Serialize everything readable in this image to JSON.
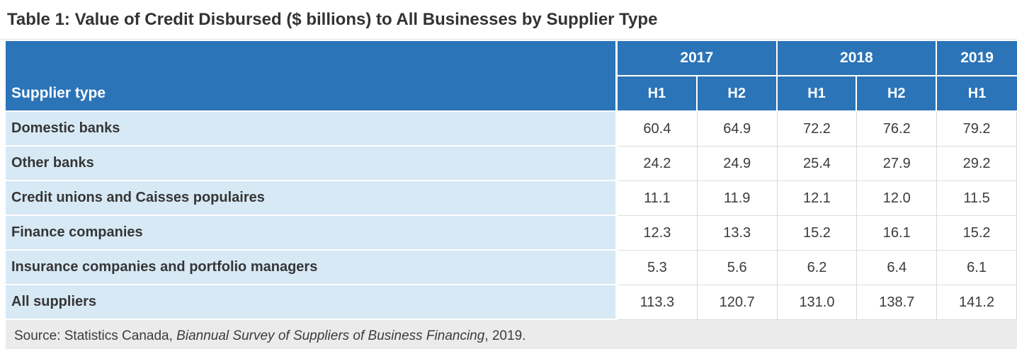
{
  "title": "Table 1: Value of Credit Disbursed ($ billions) to All Businesses by Supplier Type",
  "colors": {
    "header_bg": "#2b74b8",
    "header_text": "#ffffff",
    "row_label_bg": "#d7e9f5",
    "source_bg": "#ebebeb",
    "grid_border": "#d9d9d9",
    "title_text": "#333333",
    "label_text": "#363636",
    "value_text": "#3b3b3b",
    "source_text": "#3c3c3c"
  },
  "chart_data": {
    "type": "table",
    "title": "Table 1: Value of Credit Disbursed ($ billions) to All Businesses by Supplier Type",
    "unit": "$ billions",
    "row_header": "Supplier type",
    "year_groups": [
      {
        "label": "2017",
        "span": 2
      },
      {
        "label": "2018",
        "span": 2
      },
      {
        "label": "2019",
        "span": 1
      }
    ],
    "half_headers": [
      "H1",
      "H2",
      "H1",
      "H2",
      "H1"
    ],
    "columns": [
      "2017 H1",
      "2017 H2",
      "2018 H1",
      "2018 H2",
      "2019 H1"
    ],
    "rows": [
      {
        "label": "Domestic banks",
        "values": [
          "60.4",
          "64.9",
          "72.2",
          "76.2",
          "79.2"
        ]
      },
      {
        "label": "Other banks",
        "values": [
          "24.2",
          "24.9",
          "25.4",
          "27.9",
          "29.2"
        ]
      },
      {
        "label": "Credit unions and Caisses populaires",
        "values": [
          "11.1",
          "11.9",
          "12.1",
          "12.0",
          "11.5"
        ]
      },
      {
        "label": "Finance companies",
        "values": [
          "12.3",
          "13.3",
          "15.2",
          "16.1",
          "15.2"
        ]
      },
      {
        "label": "Insurance companies and portfolio managers",
        "values": [
          "5.3",
          "5.6",
          "6.2",
          "6.4",
          "6.1"
        ]
      },
      {
        "label": "All suppliers",
        "values": [
          "113.3",
          "120.7",
          "131.0",
          "138.7",
          "141.2"
        ]
      }
    ],
    "source": {
      "prefix": "Source: Statistics Canada, ",
      "italic": "Biannual Survey of Suppliers of Business Financing",
      "suffix": ", 2019."
    }
  }
}
